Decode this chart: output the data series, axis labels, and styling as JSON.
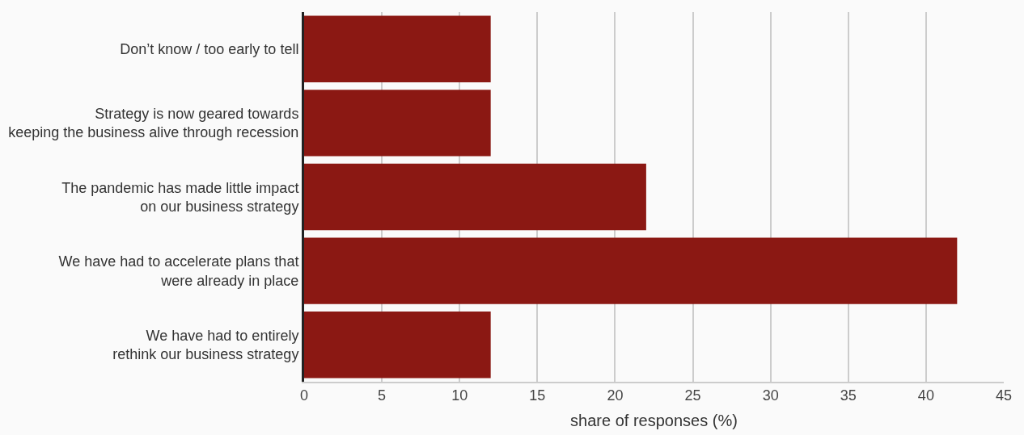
{
  "chart_data": {
    "type": "bar",
    "orientation": "horizontal",
    "xlabel": "share of responses (%)",
    "categories": [
      "Don’t know / too early to tell",
      "Strategy is now geared towards\nkeeping the business alive through recession",
      "The pandemic has made little impact\non our business strategy",
      "We have had to accelerate plans that\nwere already in place",
      "We have had to entirely\nrethink our business strategy"
    ],
    "values": [
      12,
      12,
      22,
      42,
      12
    ],
    "color": "#8b1813",
    "xlim": [
      0,
      45
    ],
    "xticks": [
      0,
      5,
      10,
      15,
      20,
      25,
      30,
      35,
      40,
      45
    ],
    "grid": "x",
    "legend": false
  }
}
